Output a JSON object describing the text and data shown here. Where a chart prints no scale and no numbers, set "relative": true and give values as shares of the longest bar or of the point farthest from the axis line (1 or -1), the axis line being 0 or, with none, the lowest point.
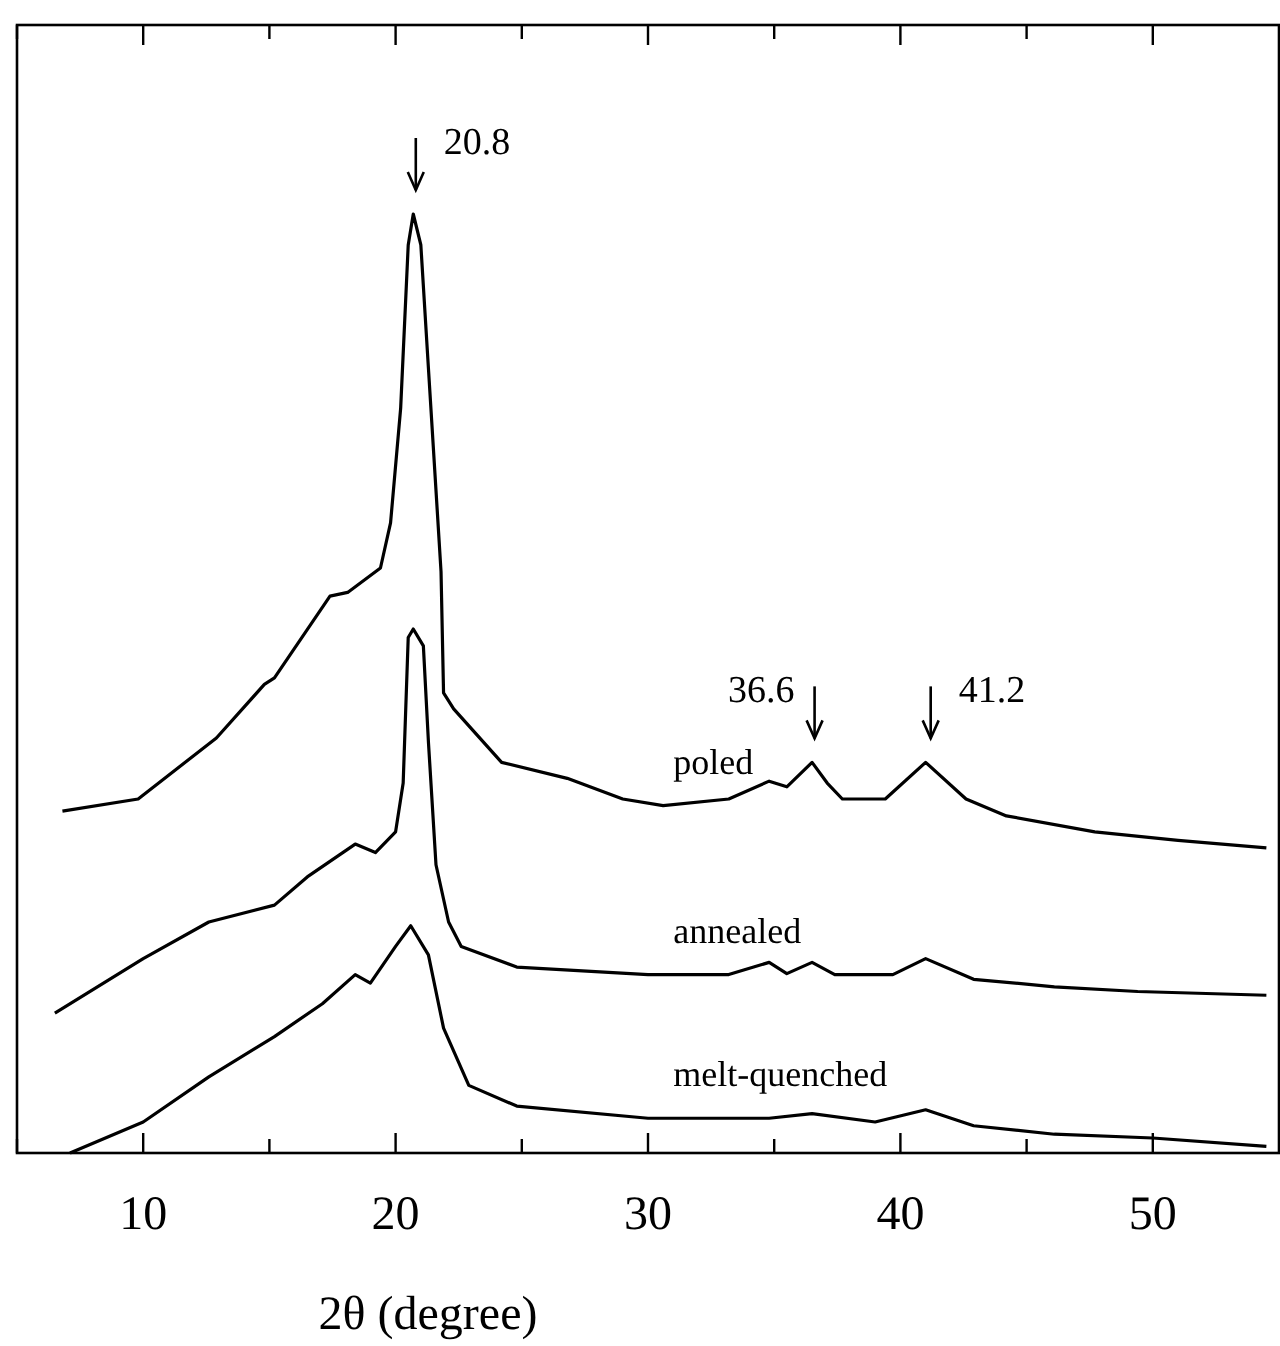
{
  "chart_data": {
    "type": "line",
    "relative": true,
    "xlabel": "2θ (degree)",
    "xlim": [
      5,
      55
    ],
    "xticks": [
      {
        "value": 5,
        "label": null
      },
      10,
      {
        "value": 15,
        "label": null
      },
      20,
      {
        "value": 25,
        "label": null
      },
      30,
      {
        "value": 35,
        "label": null
      },
      40,
      {
        "value": 45,
        "label": null
      },
      50
    ],
    "legend": false,
    "grid": false,
    "series": [
      {
        "name": "poled",
        "color": "#000000",
        "x": [
          6.8,
          9.8,
          12.9,
          14.8,
          15.2,
          17.4,
          18.1,
          19.4,
          19.8,
          20.2,
          20.5,
          20.7,
          21.0,
          21.3,
          21.8,
          21.9,
          22.3,
          24.2,
          26.8,
          29.0,
          30.6,
          33.2,
          34.8,
          35.5,
          36.5,
          37.1,
          37.7,
          39.4,
          41.0,
          42.6,
          44.2,
          47.7,
          51.0,
          54.5
        ],
        "values": [
          0.364,
          0.377,
          0.442,
          0.499,
          0.506,
          0.593,
          0.597,
          0.623,
          0.671,
          0.793,
          0.967,
          1.0,
          0.967,
          0.836,
          0.619,
          0.49,
          0.473,
          0.416,
          0.399,
          0.377,
          0.37,
          0.377,
          0.396,
          0.39,
          0.416,
          0.394,
          0.377,
          0.377,
          0.416,
          0.377,
          0.359,
          0.342,
          0.333,
          0.325
        ]
      },
      {
        "name": "annealed",
        "color": "#000000",
        "x": [
          6.5,
          10.0,
          12.6,
          15.2,
          16.5,
          18.4,
          19.2,
          20.0,
          20.3,
          20.5,
          20.7,
          21.1,
          21.3,
          21.6,
          22.1,
          22.6,
          24.8,
          30.0,
          33.2,
          34.8,
          35.5,
          36.5,
          37.4,
          39.7,
          41.0,
          42.9,
          46.1,
          49.4,
          54.5
        ],
        "values": [
          0.149,
          0.207,
          0.246,
          0.264,
          0.294,
          0.329,
          0.32,
          0.342,
          0.394,
          0.549,
          0.558,
          0.54,
          0.438,
          0.307,
          0.246,
          0.22,
          0.198,
          0.19,
          0.19,
          0.203,
          0.191,
          0.203,
          0.19,
          0.19,
          0.207,
          0.185,
          0.177,
          0.172,
          0.168
        ]
      },
      {
        "name": "melt-quenched",
        "color": "#000000",
        "x": [
          7.1,
          10.0,
          12.6,
          15.2,
          17.1,
          18.4,
          19.0,
          20.0,
          20.6,
          21.3,
          21.9,
          22.9,
          24.8,
          30.0,
          34.8,
          36.5,
          39.0,
          41.0,
          42.9,
          46.1,
          50.0,
          54.5
        ],
        "values": [
          0,
          0.033,
          0.081,
          0.124,
          0.159,
          0.19,
          0.181,
          0.22,
          0.242,
          0.211,
          0.133,
          0.072,
          0.05,
          0.037,
          0.037,
          0.042,
          0.033,
          0.046,
          0.029,
          0.02,
          0.016,
          0.007
        ]
      }
    ],
    "annotations": [
      {
        "text": "20.8",
        "x": 20.8,
        "y": 1.0
      },
      {
        "text": "36.6",
        "x": 36.6,
        "y": 0.416
      },
      {
        "text": "41.2",
        "x": 41.2,
        "y": 0.416
      }
    ]
  }
}
